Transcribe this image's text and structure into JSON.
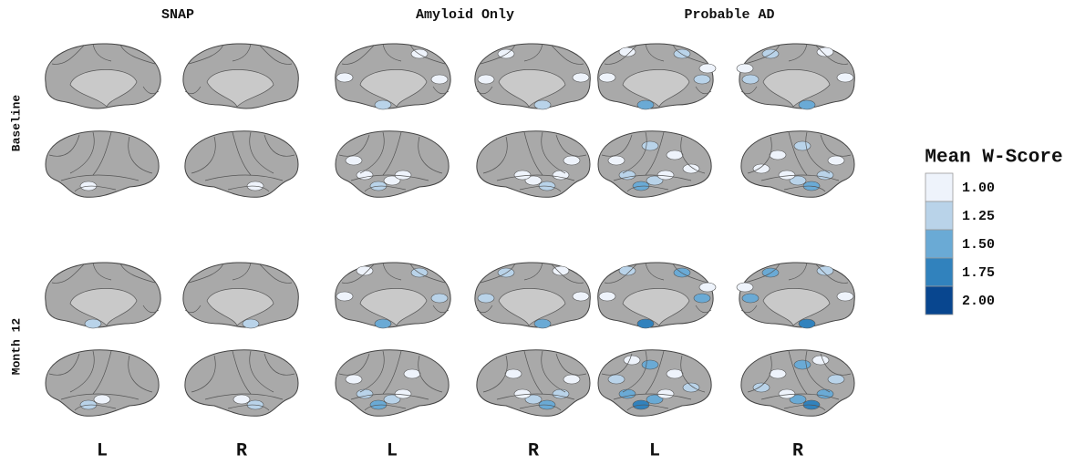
{
  "figure": {
    "columns": [
      "SNAP",
      "Amyloid Only",
      "Probable AD"
    ],
    "rows": [
      "Baseline",
      "Month 12"
    ],
    "hemispheres": [
      [
        "L",
        "R"
      ],
      [
        "L",
        "R"
      ],
      [
        "L",
        "R"
      ]
    ],
    "legend": {
      "title": "Mean W-Score",
      "entries": [
        "1.00",
        "1.25",
        "1.50",
        "1.75",
        "2.00"
      ]
    }
  }
}
